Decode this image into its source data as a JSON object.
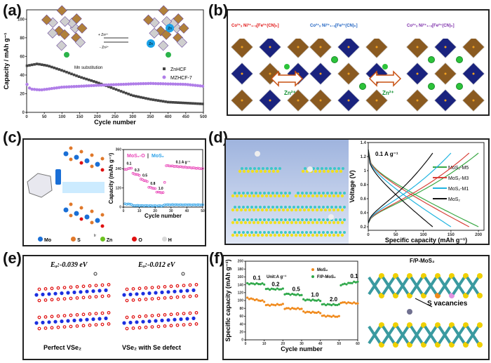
{
  "panels": {
    "a": {
      "label": "(a)",
      "arrow_forward": "+ Zn²⁺",
      "arrow_back": "- Zn²⁺",
      "annotation": "Mn substitution",
      "zn_label": "Zn"
    },
    "b": {
      "label": "(b)",
      "formulas": [
        "Co³⁺ₓ Ni³⁺₁₋ₓ[Fe³⁺(CN)₆]",
        "Co²⁺ₓ Ni²⁺₁₋ₓ[Fe³⁺(CN)₆]",
        "Co²⁺ₓ Ni²⁺₁₋ₓ[Fe²⁺(CN)₆]"
      ],
      "ion": "Zn²⁺"
    },
    "c": {
      "label": "(c)",
      "legend": [
        {
          "name": "Mo",
          "color": "#1a6fd6"
        },
        {
          "name": "S",
          "color": "#e0782a"
        },
        {
          "name": "Zn",
          "color": "#6cc21f"
        },
        {
          "name": "O",
          "color": "#e01010"
        },
        {
          "name": "H",
          "color": "#d8d8d8"
        }
      ],
      "small_label": "Ir"
    },
    "d": {
      "label": "(d)"
    },
    "e": {
      "label": "(e)",
      "structures": [
        {
          "energy": "Eₐ:-0.039 eV",
          "caption": "Perfect VSe₂"
        },
        {
          "energy": "Eₐ:-0.012 eV",
          "caption": "VSe₂ with Se defect"
        }
      ]
    },
    "f": {
      "label": "(f)",
      "structure_title": "F/P-MoS₂",
      "annotation": "S vacancies"
    }
  },
  "chart_data": [
    {
      "id": "a",
      "type": "scatter",
      "xlabel": "Cycle number",
      "ylabel": "Capacity / mAh g⁻¹",
      "xlim": [
        0,
        500
      ],
      "ylim": [
        0,
        110
      ],
      "xticks": [
        0,
        50,
        100,
        150,
        200,
        250,
        300,
        350,
        400,
        450,
        500
      ],
      "yticks": [
        0,
        20,
        40,
        60,
        80,
        100
      ],
      "series": [
        {
          "name": "ZnHCF",
          "color": "#444444",
          "marker": "square",
          "points": [
            [
              1,
              50
            ],
            [
              30,
              52
            ],
            [
              60,
              50
            ],
            [
              100,
              45
            ],
            [
              150,
              38
            ],
            [
              200,
              32
            ],
            [
              250,
              25
            ],
            [
              300,
              18
            ],
            [
              350,
              14
            ],
            [
              400,
              11
            ],
            [
              450,
              10
            ],
            [
              500,
              9
            ]
          ]
        },
        {
          "name": "MZHCF-7",
          "color": "#b07ee8",
          "marker": "circle",
          "points": [
            [
              1,
              30
            ],
            [
              10,
              25
            ],
            [
              40,
              24
            ],
            [
              100,
              27
            ],
            [
              200,
              29
            ],
            [
              300,
              30.5
            ],
            [
              350,
              31
            ],
            [
              450,
              30
            ],
            [
              500,
              28
            ]
          ]
        }
      ],
      "legend": "right"
    },
    {
      "id": "c",
      "type": "scatter",
      "title": "MoS₂-O | MoS₂",
      "title_parts": [
        "MoS₂-O",
        " | ",
        "MoS₂"
      ],
      "xlabel": "Cycle number",
      "ylabel": "Capacity (mAh g⁻¹)",
      "xlim": [
        0,
        50
      ],
      "ylim": [
        0,
        360
      ],
      "xticks": [
        0,
        10,
        20,
        30,
        40,
        50
      ],
      "yticks": [
        0,
        120,
        240,
        360
      ],
      "rate_labels": [
        {
          "text": "0.1",
          "x": 2,
          "y": 265
        },
        {
          "text": "0.3",
          "x": 7,
          "y": 225
        },
        {
          "text": "0.5",
          "x": 12,
          "y": 190
        },
        {
          "text": "0.8",
          "x": 17,
          "y": 140
        },
        {
          "text": "1.0",
          "x": 22,
          "y": 110
        },
        {
          "text": "0.1 A g⁻¹",
          "x": 33,
          "y": 275
        }
      ],
      "series": [
        {
          "name": "MoS₂-O",
          "color": "#e83fb5",
          "segments": [
            [
              1,
              5,
              235,
              245
            ],
            [
              6,
              10,
              210,
              200
            ],
            [
              11,
              15,
              175,
              160
            ],
            [
              16,
              20,
              125,
              115
            ],
            [
              21,
              25,
              95,
              90
            ],
            [
              26,
              26,
              155,
              155
            ],
            [
              27,
              50,
              260,
              240
            ]
          ]
        },
        {
          "name": "MoS₂",
          "color": "#2aa0e8",
          "segments": [
            [
              1,
              5,
              20,
              18
            ],
            [
              6,
              25,
              10,
              8
            ],
            [
              26,
              50,
              15,
              14
            ]
          ]
        }
      ]
    },
    {
      "id": "d",
      "type": "line",
      "xlabel": "Specific capacity (mAh g⁻¹)",
      "ylabel": "Voltage (V)",
      "annotation": "0.1 A g⁻¹",
      "xlim": [
        0,
        210
      ],
      "ylim": [
        0.15,
        1.4
      ],
      "xticks": [
        0,
        50,
        100,
        150,
        200
      ],
      "yticks": [
        0.2,
        0.4,
        0.6,
        0.8,
        1.0,
        1.2,
        1.4
      ],
      "series": [
        {
          "name": "MoS₂-M5",
          "color": "#3aa845",
          "max_capacity": 200
        },
        {
          "name": "MoS₂-M3",
          "color": "#d8423a",
          "max_capacity": 183
        },
        {
          "name": "MoS₂-M1",
          "color": "#20b4e0",
          "max_capacity": 150
        },
        {
          "name": "MoS₂",
          "color": "#111111",
          "max_capacity": 117
        }
      ]
    },
    {
      "id": "f",
      "type": "scatter",
      "xlabel": "Cycle number",
      "ylabel": "Specific capacity (mAh g⁻¹)",
      "annotation": "Unit:A g⁻¹",
      "xlim": [
        0,
        60
      ],
      "ylim": [
        0,
        200
      ],
      "xticks": [
        0,
        10,
        20,
        30,
        40,
        50,
        60
      ],
      "yticks": [
        0,
        20,
        40,
        60,
        80,
        100,
        120,
        140,
        160,
        180,
        200
      ],
      "rate_labels": [
        {
          "text": "0.1",
          "x": 4,
          "y": 153
        },
        {
          "text": "0.2",
          "x": 14,
          "y": 137
        },
        {
          "text": "0.5",
          "x": 25,
          "y": 124
        },
        {
          "text": "1.0",
          "x": 35,
          "y": 110
        },
        {
          "text": "2.0",
          "x": 45,
          "y": 98
        },
        {
          "text": "0.1",
          "x": 56,
          "y": 157
        }
      ],
      "series": [
        {
          "name": "MoS₂",
          "color": "#f08a1c",
          "segments": [
            [
              1,
              10,
              106,
              98
            ],
            [
              11,
              20,
              88,
              90
            ],
            [
              21,
              30,
              80,
              79
            ],
            [
              31,
              40,
              71,
              69
            ],
            [
              41,
              50,
              61,
              59
            ],
            [
              51,
              60,
              95,
              93
            ]
          ]
        },
        {
          "name": "F/P-MoS₂",
          "color": "#2fa84a",
          "segments": [
            [
              1,
              10,
              143,
              142
            ],
            [
              11,
              20,
              129,
              129
            ],
            [
              21,
              30,
              117,
              114
            ],
            [
              31,
              40,
              102,
              100
            ],
            [
              41,
              50,
              90,
              89
            ],
            [
              51,
              60,
              140,
              148
            ]
          ]
        }
      ]
    }
  ]
}
